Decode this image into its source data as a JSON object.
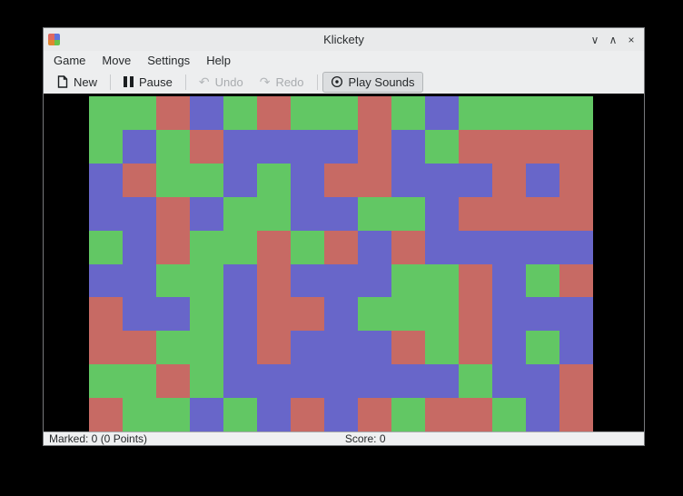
{
  "window": {
    "title": "Klickety",
    "controls": {
      "minimize": "∨",
      "maximize": "∧",
      "close": "×"
    }
  },
  "menu": {
    "items": [
      {
        "label": "Game"
      },
      {
        "label": "Move"
      },
      {
        "label": "Settings"
      },
      {
        "label": "Help"
      }
    ]
  },
  "toolbar": {
    "new_label": "New",
    "pause_label": "Pause",
    "undo_label": "Undo",
    "redo_label": "Redo",
    "play_sounds_label": "Play Sounds",
    "icons": {
      "new": "new-document-icon",
      "pause": "pause-icon",
      "undo": "↶",
      "redo": "↷",
      "play_sounds": "sound-emblem-icon"
    },
    "states": {
      "undo_enabled": false,
      "redo_enabled": false,
      "play_sounds_checked": true
    }
  },
  "statusbar": {
    "marked": "Marked: 0 (0 Points)",
    "score": "Score: 0"
  },
  "board": {
    "columns": 15,
    "rows": 10,
    "palette": {
      "G": "#62c764",
      "R": "#c76a64",
      "B": "#6866c9"
    },
    "color_names": {
      "G": "green",
      "R": "red",
      "B": "blue"
    },
    "grid": [
      "GGRBGRGGRGBGGGG",
      "GBGRBBBBRBGRRRR",
      "BRGGBGBRRBBBRBR",
      "BBRBGGBBGGBRRRR",
      "GBRGGRGRBRBBBBB",
      "BBGGBRBBBGGRBGR",
      "RBBGBRRBGGGRBBB",
      "RRGGBRBBBRGRBGB",
      "GGRGBBBBBBBGBBR",
      "RGGBGBRBRGRRGBR"
    ]
  }
}
